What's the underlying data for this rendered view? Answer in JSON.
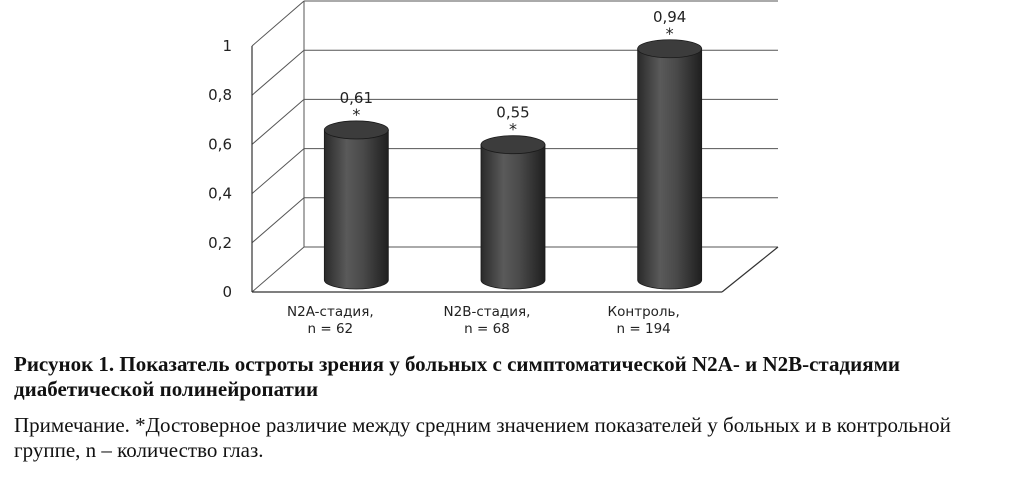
{
  "chart_data": {
    "type": "bar",
    "style": "3d-cylinder",
    "categories": [
      [
        "N2A-стадия,",
        "n = 62"
      ],
      [
        "N2B-стадия,",
        "n = 68"
      ],
      [
        "Контроль,",
        "n = 194"
      ]
    ],
    "values": [
      0.61,
      0.55,
      0.94
    ],
    "data_labels": [
      "0,61",
      "0,55",
      "0,94"
    ],
    "significance_marks": [
      "*",
      "*",
      "*"
    ],
    "ylim": [
      0,
      1
    ],
    "yticks": [
      "0",
      "0,2",
      "0,4",
      "0,6",
      "0,8",
      "1"
    ],
    "ytick_values": [
      0,
      0.2,
      0.4,
      0.6,
      0.8,
      1
    ],
    "grid": true,
    "bar_color": "#4a4a4a"
  },
  "caption": {
    "title": "Рисунок 1. Показатель остроты зрения у больных с симптоматической N2A- и N2B-стадиями диабетической полинейропатии",
    "note": "Примечание. *Достоверное различие между средним значением показателей у больных и в контрольной группе, n – количество глаз."
  }
}
